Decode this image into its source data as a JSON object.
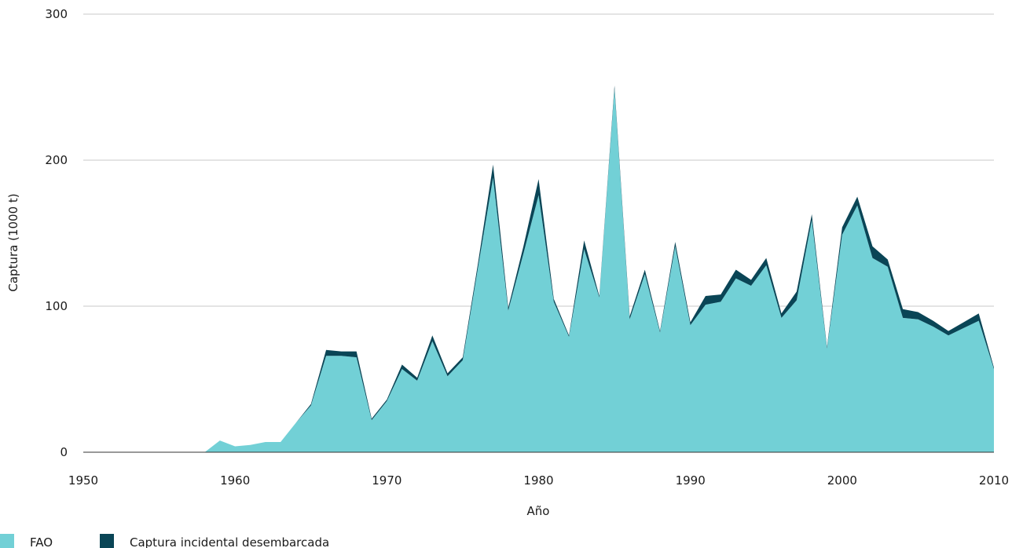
{
  "chart_data": {
    "type": "area",
    "stacked": true,
    "xlabel": "Año",
    "ylabel": "Captura (1000 t)",
    "xlim": [
      1950,
      2010
    ],
    "ylim": [
      0,
      300
    ],
    "xticks": [
      1950,
      1960,
      1970,
      1980,
      1990,
      2000,
      2010
    ],
    "yticks": [
      0,
      100,
      200,
      300
    ],
    "grid": "horizontal",
    "legend_position": "bottom-left",
    "x": [
      1950,
      1951,
      1952,
      1953,
      1954,
      1955,
      1956,
      1957,
      1958,
      1959,
      1960,
      1961,
      1962,
      1963,
      1964,
      1965,
      1966,
      1967,
      1968,
      1969,
      1970,
      1971,
      1972,
      1973,
      1974,
      1975,
      1976,
      1977,
      1978,
      1979,
      1980,
      1981,
      1982,
      1983,
      1984,
      1985,
      1986,
      1987,
      1988,
      1989,
      1990,
      1991,
      1992,
      1993,
      1994,
      1995,
      1996,
      1997,
      1998,
      1999,
      2000,
      2001,
      2002,
      2003,
      2004,
      2005,
      2006,
      2007,
      2008,
      2009,
      2010
    ],
    "series": [
      {
        "name": "FAO",
        "color": "#72d0d6",
        "values": [
          0,
          0,
          0,
          0,
          0,
          0,
          0,
          0,
          0,
          8,
          4,
          5,
          7,
          7,
          20,
          32,
          66,
          66,
          65,
          22,
          35,
          57,
          49,
          76,
          52,
          63,
          126,
          188,
          97,
          136,
          176,
          103,
          79,
          139,
          106,
          249,
          91,
          122,
          82,
          141,
          87,
          101,
          103,
          119,
          114,
          128,
          92,
          104,
          159,
          71,
          149,
          169,
          133,
          127,
          92,
          91,
          86,
          80,
          85,
          90,
          57
        ]
      },
      {
        "name": "Captura incidental desembarcada",
        "color": "#0a4556",
        "values": [
          0,
          0,
          0,
          0,
          0,
          0,
          0,
          0,
          0,
          0,
          0,
          0,
          0,
          0,
          0,
          1,
          4,
          3,
          4,
          1,
          1,
          3,
          2,
          4,
          2,
          2,
          3,
          9,
          2,
          5,
          11,
          2,
          1,
          6,
          1,
          2,
          2,
          3,
          1,
          3,
          2,
          6,
          5,
          6,
          4,
          5,
          3,
          6,
          4,
          1,
          5,
          6,
          8,
          5,
          6,
          5,
          4,
          3,
          4,
          5,
          1
        ]
      }
    ]
  }
}
